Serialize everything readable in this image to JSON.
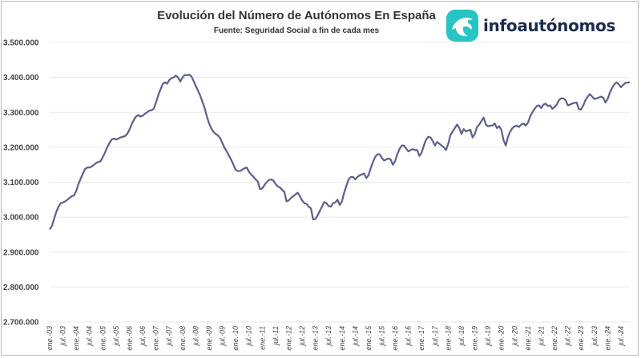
{
  "header": {
    "title": "Evolución del Número de Autónomos En España",
    "subtitle": "Fuente: Seguridad Social a fin de cada mes"
  },
  "logo": {
    "text": "infoautónomos",
    "icon": "dolphin-icon",
    "color": "#27c4c4"
  },
  "colors": {
    "line": "#5c5f8e",
    "grid": "#e9e9e9"
  },
  "chart_data": {
    "type": "line",
    "title": "Evolución del Número de Autónomos En España",
    "subtitle": "Fuente: Seguridad Social a fin de cada mes",
    "xlabel": "",
    "ylabel": "",
    "ylim": [
      2700000,
      3500000
    ],
    "yticks": [
      {
        "value": 3500000,
        "label": "3.500.000"
      },
      {
        "value": 3400000,
        "label": "3.400.000"
      },
      {
        "value": 3300000,
        "label": "3.300.000"
      },
      {
        "value": 3200000,
        "label": "3.200.000"
      },
      {
        "value": 3100000,
        "label": "3.100.000"
      },
      {
        "value": 3000000,
        "label": "3.000.000"
      },
      {
        "value": 2900000,
        "label": "2.900.000"
      },
      {
        "value": 2800000,
        "label": "2.800.000"
      },
      {
        "value": 2700000,
        "label": "2.700.000"
      }
    ],
    "xticks": [
      "ene.-03",
      "jul.-03",
      "ene.-04",
      "jul.-04",
      "ene.-05",
      "jul.-05",
      "ene.-06",
      "jul.-06",
      "ene.-07",
      "jul.-07",
      "ene.-08",
      "jul.-08",
      "ene.-09",
      "jul.-09",
      "ene.-10",
      "jul.-10",
      "ene.-11",
      "jul.-11",
      "ene.-12",
      "jul.-12",
      "ene.-13",
      "jul.-13",
      "ene.-14",
      "jul.-14",
      "ene.-15",
      "jul.-15",
      "ene.-16",
      "jul.-16",
      "ene.-17",
      "jul.-17",
      "ene.-18",
      "jul.-18",
      "ene.-19",
      "jul.-19",
      "ene.-20",
      "jul.-20",
      "ene.-21",
      "jul.-21",
      "ene.-22",
      "jul.-22",
      "ene.-23",
      "jul.-23",
      "ene.-24",
      "jul.-24"
    ],
    "grid": true,
    "series": [
      {
        "values": [
          2965000,
          2975000,
          2995000,
          3015000,
          3030000,
          3040000,
          3042000,
          3045000,
          3050000,
          3055000,
          3060000,
          3062000,
          3075000,
          3095000,
          3110000,
          3125000,
          3138000,
          3142000,
          3142000,
          3145000,
          3150000,
          3155000,
          3158000,
          3160000,
          3172000,
          3185000,
          3200000,
          3212000,
          3222000,
          3225000,
          3222000,
          3225000,
          3228000,
          3230000,
          3232000,
          3238000,
          3250000,
          3265000,
          3278000,
          3288000,
          3292000,
          3288000,
          3290000,
          3296000,
          3300000,
          3305000,
          3306000,
          3310000,
          3328000,
          3348000,
          3365000,
          3380000,
          3386000,
          3382000,
          3392000,
          3398000,
          3400000,
          3405000,
          3400000,
          3388000,
          3400000,
          3407000,
          3406000,
          3408000,
          3403000,
          3390000,
          3375000,
          3362000,
          3348000,
          3330000,
          3312000,
          3288000,
          3268000,
          3254000,
          3244000,
          3238000,
          3234000,
          3226000,
          3212000,
          3198000,
          3188000,
          3176000,
          3164000,
          3150000,
          3135000,
          3132000,
          3132000,
          3136000,
          3140000,
          3142000,
          3130000,
          3122000,
          3116000,
          3108000,
          3102000,
          3080000,
          3082000,
          3092000,
          3100000,
          3106000,
          3108000,
          3105000,
          3095000,
          3088000,
          3085000,
          3078000,
          3072000,
          3045000,
          3048000,
          3055000,
          3060000,
          3065000,
          3070000,
          3060000,
          3048000,
          3040000,
          3038000,
          3030000,
          3025000,
          2993000,
          2995000,
          3005000,
          3018000,
          3030000,
          3043000,
          3040000,
          3032000,
          3030000,
          3040000,
          3042000,
          3050000,
          3035000,
          3045000,
          3070000,
          3090000,
          3108000,
          3115000,
          3115000,
          3108000,
          3115000,
          3120000,
          3122000,
          3125000,
          3112000,
          3120000,
          3140000,
          3158000,
          3172000,
          3180000,
          3180000,
          3170000,
          3162000,
          3165000,
          3168000,
          3165000,
          3150000,
          3160000,
          3180000,
          3195000,
          3205000,
          3205000,
          3196000,
          3188000,
          3192000,
          3195000,
          3192000,
          3192000,
          3175000,
          3185000,
          3205000,
          3222000,
          3230000,
          3228000,
          3218000,
          3205000,
          3215000,
          3210000,
          3205000,
          3200000,
          3192000,
          3210000,
          3235000,
          3245000,
          3255000,
          3265000,
          3255000,
          3238000,
          3252000,
          3245000,
          3248000,
          3250000,
          3228000,
          3238000,
          3258000,
          3265000,
          3275000,
          3285000,
          3265000,
          3260000,
          3262000,
          3262000,
          3268000,
          3255000,
          3260000,
          3250000,
          3220000,
          3205000,
          3230000,
          3245000,
          3255000,
          3260000,
          3262000,
          3258000,
          3265000,
          3268000,
          3262000,
          3270000,
          3288000,
          3300000,
          3310000,
          3318000,
          3320000,
          3312000,
          3322000,
          3325000,
          3318000,
          3320000,
          3310000,
          3315000,
          3322000,
          3335000,
          3340000,
          3340000,
          3335000,
          3320000,
          3322000,
          3325000,
          3327000,
          3328000,
          3310000,
          3308000,
          3320000,
          3335000,
          3345000,
          3352000,
          3345000,
          3338000,
          3340000,
          3342000,
          3345000,
          3342000,
          3328000,
          3338000,
          3356000,
          3370000,
          3380000,
          3386000,
          3380000,
          3372000,
          3378000,
          3384000,
          3385000,
          3386000
        ]
      }
    ]
  }
}
